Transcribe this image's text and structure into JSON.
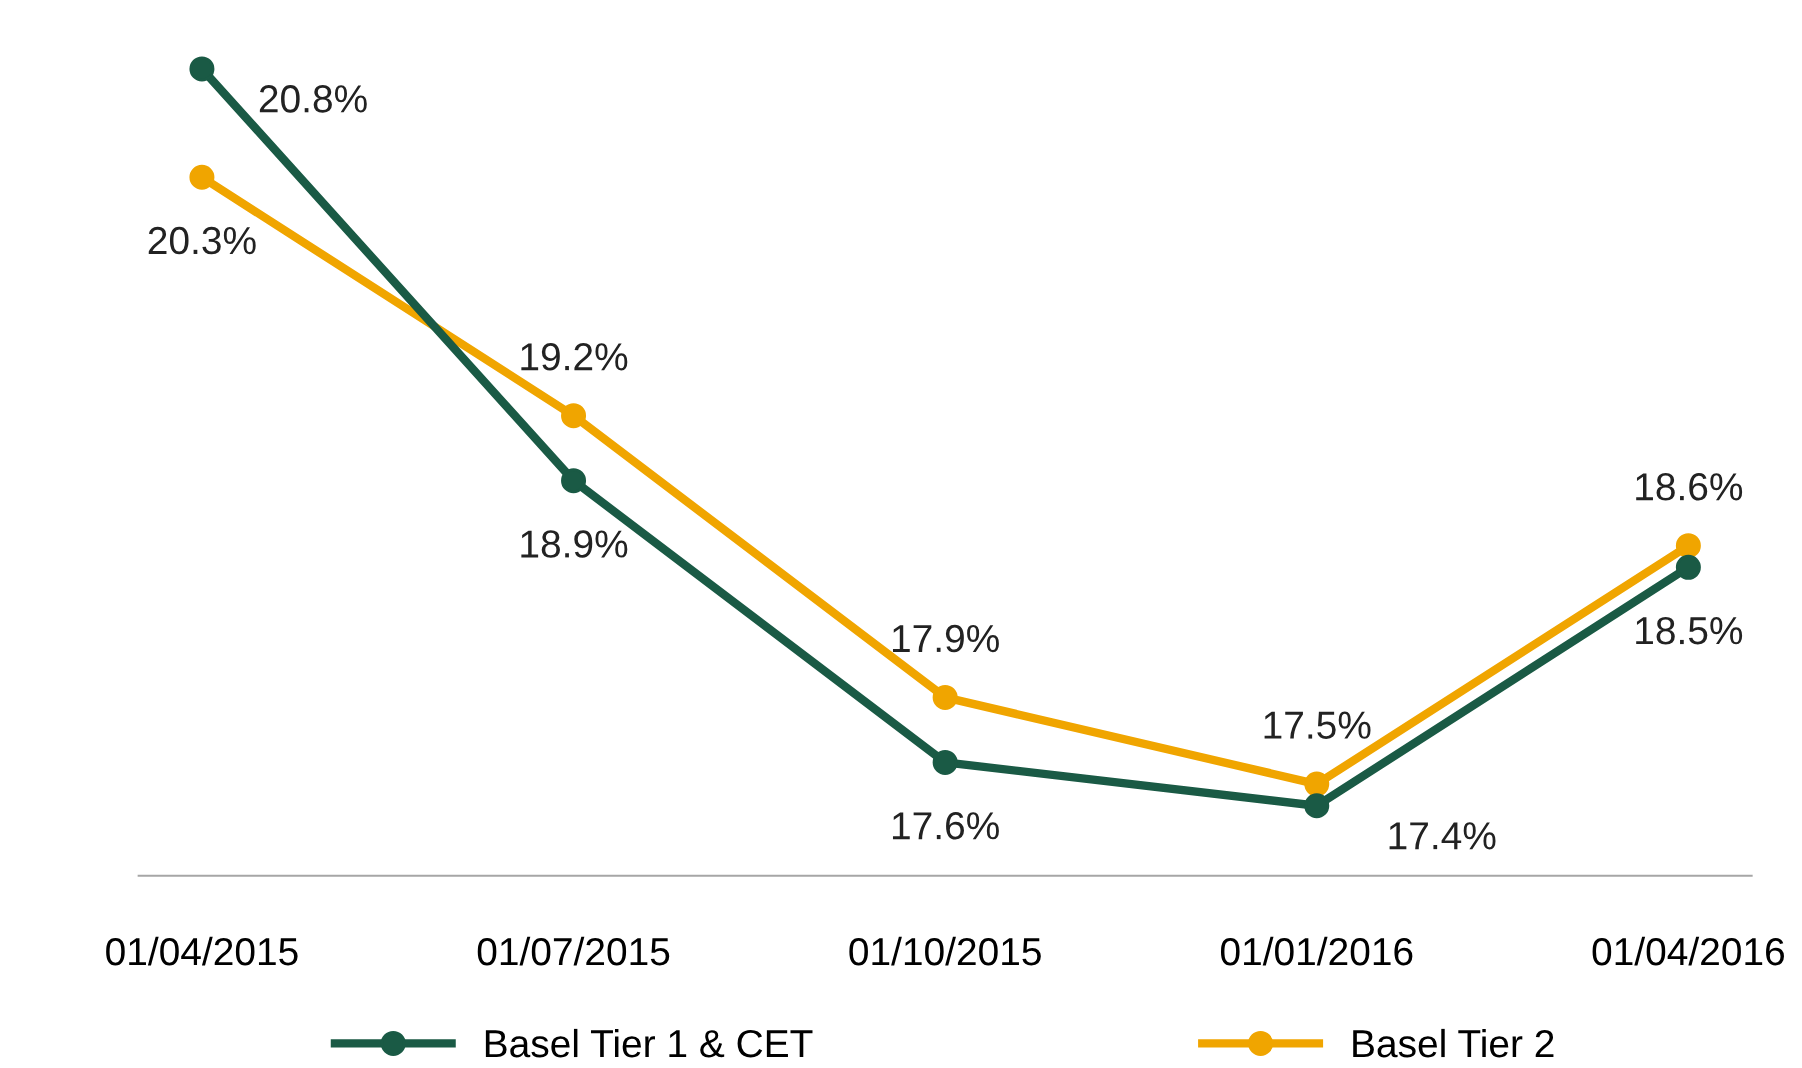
{
  "chart_data": {
    "type": "line",
    "categories": [
      "01/04/2015",
      "01/07/2015",
      "01/10/2015",
      "01/01/2016",
      "01/04/2016"
    ],
    "series": [
      {
        "name": "Basel Tier 1 & CET",
        "color": "#1a5a45",
        "values": [
          20.8,
          18.9,
          17.6,
          17.4,
          18.5
        ],
        "value_labels": [
          "20.8%",
          "18.9%",
          "17.6%",
          "17.4%",
          "18.5%"
        ]
      },
      {
        "name": "Basel Tier 2",
        "color": "#f0a500",
        "values": [
          20.3,
          19.2,
          17.9,
          17.5,
          18.6
        ],
        "value_labels": [
          "20.3%",
          "19.2%",
          "17.9%",
          "17.5%",
          "18.6%"
        ]
      }
    ],
    "marker": "circle",
    "line_style": "solid",
    "legend": "bottom",
    "grid": false,
    "tick_labels": "x"
  }
}
